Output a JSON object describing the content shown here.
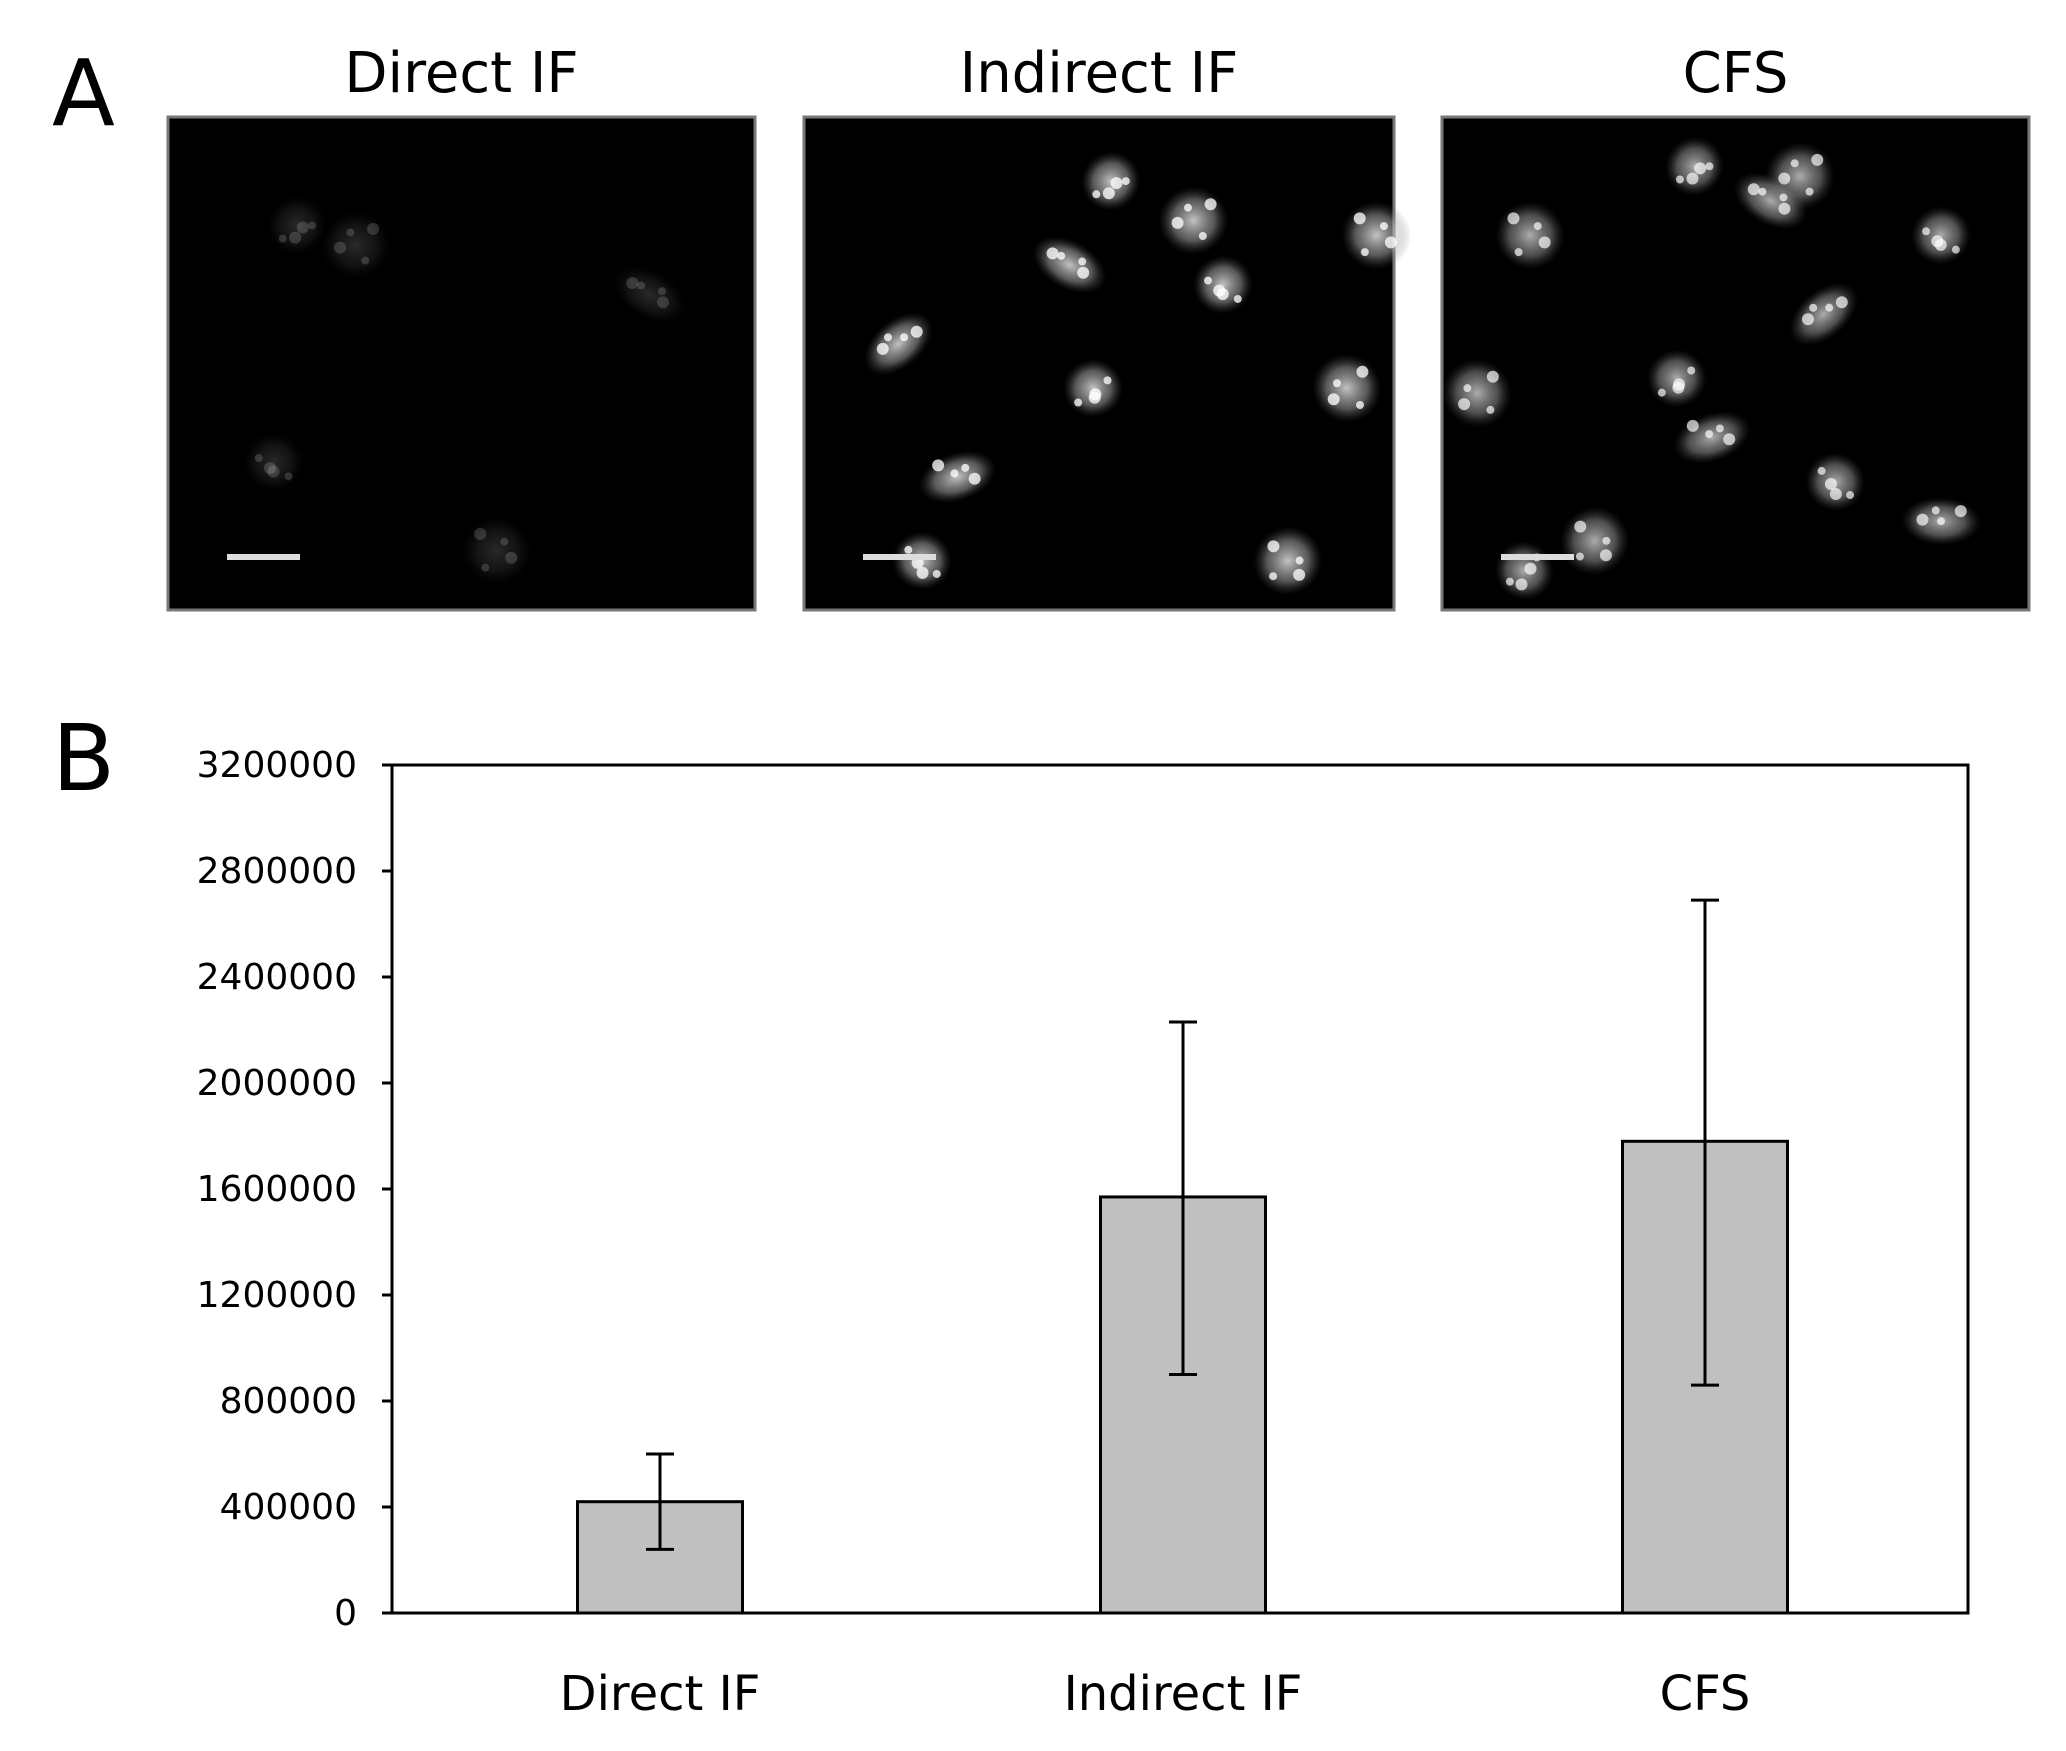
{
  "panels": {
    "a_label": "A",
    "b_label": "B"
  },
  "micrographs": [
    {
      "title": "Direct IF",
      "brightness": 0.18,
      "nuclei": [
        [
          0.22,
          0.22
        ],
        [
          0.32,
          0.26
        ],
        [
          0.82,
          0.36
        ],
        [
          0.18,
          0.7
        ],
        [
          0.56,
          0.88
        ]
      ]
    },
    {
      "title": "Indirect IF",
      "brightness": 0.85,
      "nuclei": [
        [
          0.52,
          0.13
        ],
        [
          0.66,
          0.21
        ],
        [
          0.45,
          0.3
        ],
        [
          0.71,
          0.34
        ],
        [
          0.97,
          0.24
        ],
        [
          0.16,
          0.46
        ],
        [
          0.49,
          0.55
        ],
        [
          0.92,
          0.55
        ],
        [
          0.26,
          0.73
        ],
        [
          0.2,
          0.9
        ],
        [
          0.82,
          0.9
        ]
      ]
    },
    {
      "title": "CFS",
      "brightness": 0.75,
      "nuclei": [
        [
          0.43,
          0.1
        ],
        [
          0.61,
          0.12
        ],
        [
          0.56,
          0.17
        ],
        [
          0.85,
          0.24
        ],
        [
          0.15,
          0.24
        ],
        [
          0.65,
          0.4
        ],
        [
          0.4,
          0.53
        ],
        [
          0.06,
          0.56
        ],
        [
          0.46,
          0.65
        ],
        [
          0.67,
          0.74
        ],
        [
          0.26,
          0.86
        ],
        [
          0.85,
          0.82
        ],
        [
          0.14,
          0.92
        ]
      ]
    }
  ],
  "chart_data": {
    "type": "bar",
    "categories": [
      "Direct IF",
      "Indirect IF",
      "CFS"
    ],
    "values": [
      420000,
      1570000,
      1780000
    ],
    "error_low": [
      240000,
      900000,
      860000
    ],
    "error_high": [
      600000,
      2230000,
      2690000
    ],
    "ylim": [
      0,
      3200000
    ],
    "yticks": [
      0,
      400000,
      800000,
      1200000,
      1600000,
      2000000,
      2400000,
      2800000,
      3200000
    ],
    "ytick_labels": [
      "0",
      "400000",
      "800000",
      "1200000",
      "1600000",
      "2000000",
      "2400000",
      "2800000",
      "3200000"
    ],
    "bar_color": "#c0c0c0",
    "grid": false,
    "legend": "none",
    "title": "",
    "xlabel": "",
    "ylabel": ""
  }
}
